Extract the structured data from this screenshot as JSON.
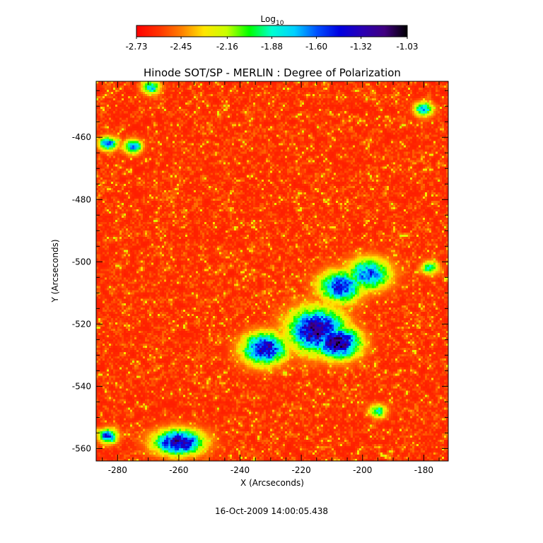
{
  "chart_data": {
    "type": "heatmap",
    "title": "Hinode SOT/SP - MERLIN : Degree of Polarization",
    "xlabel": "X (Arcseconds)",
    "ylabel": "Y (Arcseconds)",
    "xlim": [
      -287,
      -172
    ],
    "ylim": [
      -564,
      -442
    ],
    "x_ticks": [
      -280,
      -260,
      -240,
      -220,
      -200,
      -180
    ],
    "y_ticks": [
      -460,
      -480,
      -500,
      -520,
      -540,
      -560
    ],
    "colorbar": {
      "label": "Log",
      "label_subscript": "10",
      "range": [
        -2.73,
        -1.03
      ],
      "tick_values": [
        -2.73,
        -2.45,
        -2.16,
        -1.88,
        -1.6,
        -1.32,
        -1.03
      ],
      "tick_labels": [
        "-2.73",
        "-2.45",
        "-2.16",
        "-1.88",
        "-1.60",
        "-1.32",
        "-1.03"
      ],
      "colormap": [
        "#ff0000",
        "#ff3300",
        "#ff8000",
        "#ffe600",
        "#c8ff00",
        "#00ff00",
        "#00ffd0",
        "#00d0ff",
        "#0050ff",
        "#0000e0",
        "#2a00b4",
        "#400080",
        "#000000"
      ]
    },
    "background_value": -2.65,
    "features": [
      {
        "region": "central polarized cluster",
        "x": -215,
        "y": -522,
        "peak": -1.2
      },
      {
        "region": "central cluster core",
        "x": -208,
        "y": -526,
        "peak": -1.1
      },
      {
        "region": "central cluster west arm",
        "x": -232,
        "y": -528,
        "peak": -1.3
      },
      {
        "region": "central cluster north arm",
        "x": -207,
        "y": -508,
        "peak": -1.45
      },
      {
        "region": "central cluster NE extension",
        "x": -198,
        "y": -504,
        "peak": -1.55
      },
      {
        "region": "southwest patch",
        "x": -260,
        "y": -558,
        "peak": -1.25
      },
      {
        "region": "southwest corner patch",
        "x": -283,
        "y": -556,
        "peak": -1.4
      },
      {
        "region": "west edge patch",
        "x": -283,
        "y": -462,
        "peak": -1.5
      },
      {
        "region": "west edge patch",
        "x": -275,
        "y": -463,
        "peak": -1.6
      },
      {
        "region": "north small patch",
        "x": -269,
        "y": -444,
        "peak": -1.7
      },
      {
        "region": "northeast small patch",
        "x": -180,
        "y": -451,
        "peak": -1.6
      },
      {
        "region": "east small patch",
        "x": -178,
        "y": -502,
        "peak": -1.85
      },
      {
        "region": "southeast small patch",
        "x": -195,
        "y": -548,
        "peak": -1.85
      }
    ]
  },
  "footer": {
    "timestamp": "16-Oct-2009 14:00:05.438"
  }
}
